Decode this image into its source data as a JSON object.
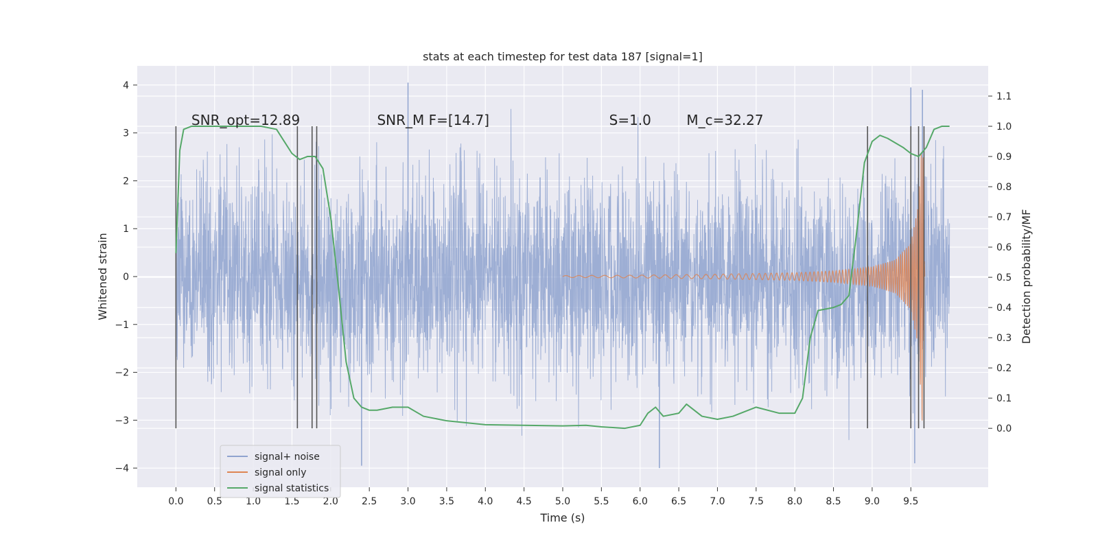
{
  "chart_data": {
    "type": "line",
    "title": "stats at each timestep for test data 187 [signal=1]",
    "xlabel": "Time (s)",
    "ylabel": "Whitened strain",
    "y2label": "Detection probability/MF",
    "xlim": [
      -0.5,
      10.5
    ],
    "ylim": [
      -4.4,
      4.4
    ],
    "y2lim": [
      -0.195,
      1.2
    ],
    "x_ticks": [
      "0.0",
      "0.5",
      "1.0",
      "1.5",
      "2.0",
      "2.5",
      "3.0",
      "3.5",
      "4.0",
      "4.5",
      "5.0",
      "5.5",
      "6.0",
      "6.5",
      "7.0",
      "7.5",
      "8.0",
      "8.5",
      "9.0",
      "9.5"
    ],
    "y_ticks": [
      "4",
      "3",
      "2",
      "1",
      "0",
      "−1",
      "−2",
      "−3",
      "−4"
    ],
    "y2_ticks": [
      "1.1",
      "1.0",
      "0.9",
      "0.8",
      "0.7",
      "0.6",
      "0.5",
      "0.4",
      "0.3",
      "0.2",
      "0.1",
      "0.0"
    ],
    "grid": true,
    "legend_position": "lower-left",
    "annotations": [
      {
        "text": "SNR_opt=12.89",
        "x": 0.2,
        "y": 3.3
      },
      {
        "text": "SNR_M F=[14.7]",
        "x": 2.6,
        "y": 3.3
      },
      {
        "text": "S=1.0",
        "x": 5.6,
        "y": 3.3
      },
      {
        "text": "M_c=32.27",
        "x": 6.6,
        "y": 3.3
      }
    ],
    "series": [
      {
        "name": "signal+ noise",
        "color": "#8fa3cf",
        "kind": "noise",
        "x_range": [
          0.0,
          10.0
        ],
        "amplitude_core": 1.3,
        "amplitude_peak": 3.5,
        "notable_peaks": [
          [
            3.0,
            4.05
          ],
          [
            9.5,
            3.95
          ],
          [
            9.65,
            3.9
          ],
          [
            2.4,
            -3.95
          ],
          [
            6.25,
            -4.0
          ],
          [
            9.55,
            -3.9
          ]
        ]
      },
      {
        "name": "signal only",
        "color": "#dd8452",
        "kind": "chirp",
        "x": [
          5.0,
          6.0,
          7.0,
          8.0,
          8.5,
          9.0,
          9.3,
          9.5,
          9.6,
          9.65,
          9.68
        ],
        "envelope": [
          0.02,
          0.03,
          0.05,
          0.08,
          0.12,
          0.2,
          0.35,
          0.7,
          1.5,
          3.2,
          0.0
        ]
      },
      {
        "name": "signal statistics",
        "color": "#55a868",
        "kind": "line",
        "axis": "right",
        "x": [
          0.0,
          0.05,
          0.1,
          0.2,
          0.4,
          0.8,
          1.1,
          1.3,
          1.4,
          1.5,
          1.6,
          1.7,
          1.8,
          1.9,
          2.0,
          2.1,
          2.2,
          2.3,
          2.4,
          2.5,
          2.6,
          2.8,
          3.0,
          3.2,
          3.5,
          4.0,
          4.5,
          5.0,
          5.3,
          5.5,
          5.8,
          6.0,
          6.1,
          6.2,
          6.3,
          6.5,
          6.6,
          6.8,
          7.0,
          7.2,
          7.5,
          7.8,
          8.0,
          8.1,
          8.2,
          8.3,
          8.5,
          8.6,
          8.7,
          8.8,
          8.9,
          9.0,
          9.1,
          9.2,
          9.4,
          9.5,
          9.6,
          9.7,
          9.8,
          9.9,
          10.0
        ],
        "values": [
          0.58,
          0.92,
          0.99,
          1.0,
          1.0,
          1.0,
          1.0,
          0.99,
          0.95,
          0.91,
          0.89,
          0.9,
          0.9,
          0.86,
          0.7,
          0.47,
          0.22,
          0.1,
          0.07,
          0.06,
          0.06,
          0.07,
          0.07,
          0.04,
          0.025,
          0.012,
          0.01,
          0.008,
          0.01,
          0.005,
          0.0,
          0.01,
          0.05,
          0.07,
          0.04,
          0.05,
          0.08,
          0.04,
          0.03,
          0.04,
          0.07,
          0.05,
          0.05,
          0.1,
          0.3,
          0.39,
          0.4,
          0.41,
          0.44,
          0.65,
          0.88,
          0.95,
          0.97,
          0.96,
          0.93,
          0.91,
          0.9,
          0.93,
          0.99,
          1.0,
          1.0
        ]
      }
    ],
    "vertical_markers": [
      0.0,
      1.57,
      1.76,
      1.82,
      8.94,
      9.5,
      9.6,
      9.67
    ],
    "marker_color": "#555555"
  }
}
